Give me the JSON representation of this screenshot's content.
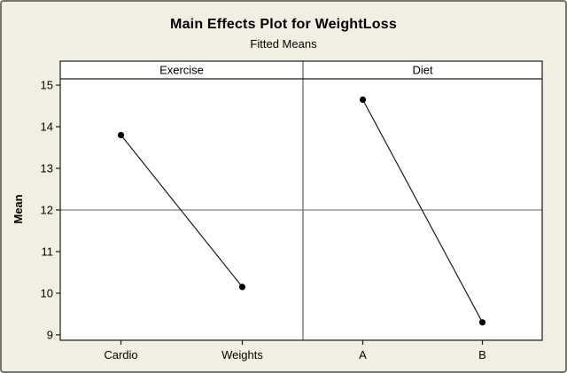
{
  "window": {
    "background": "#F1EEE2",
    "border_color": "#74746E"
  },
  "chart_data": {
    "type": "line",
    "title": "Main Effects Plot for WeightLoss",
    "subtitle": "Fitted Means",
    "ylabel": "Mean",
    "xlabel": "",
    "y_ticks": [
      15,
      14,
      13,
      12,
      11,
      10,
      9
    ],
    "ylim": [
      8.87,
      15.15
    ],
    "reference_line_mean": 12.0,
    "grid": "off",
    "legend": "none",
    "panels": [
      {
        "label": "Exercise",
        "categories": [
          "Cardio",
          "Weights"
        ],
        "values": [
          13.8,
          10.15
        ]
      },
      {
        "label": "Diet",
        "categories": [
          "A",
          "B"
        ],
        "values": [
          14.65,
          9.3
        ]
      }
    ],
    "colors": {
      "plot_background": "#FFFFFF",
      "frame": "#1A1A1A",
      "panel_divider": "#5F5F5F",
      "reference_line": "#7F7F7F",
      "series_line": "#1A1A1A",
      "marker": "#000000",
      "text": "#000000"
    }
  }
}
